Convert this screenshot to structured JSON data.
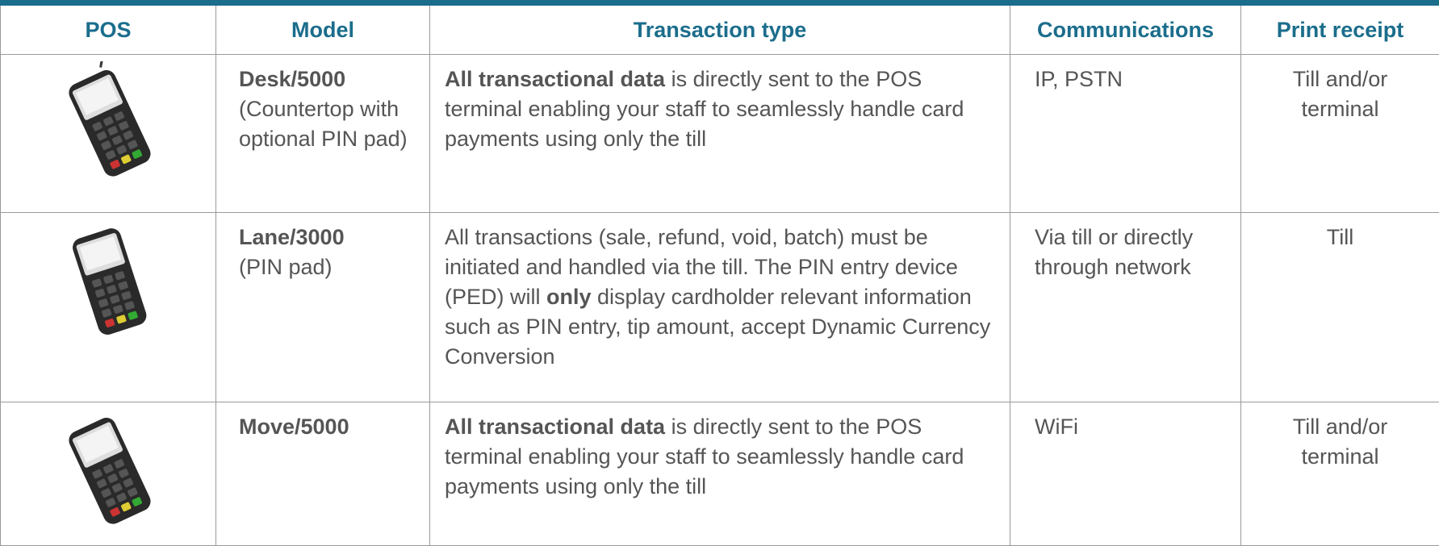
{
  "table": {
    "header": [
      "POS",
      "Model",
      "Transaction type",
      "Communications",
      "Print receipt"
    ],
    "rows": [
      {
        "model": {
          "name": "Desk/5000",
          "description": "(Countertop with optional PIN pad)"
        },
        "transaction": [
          {
            "text": "All transactional data",
            "bold": true
          },
          {
            "text": " is directly sent to the POS terminal enabling your staff to seamlessly handle card payments using only the till",
            "bold": false
          }
        ],
        "communications": "IP, PSTN",
        "print_receipt": "Till and/or terminal"
      },
      {
        "model": {
          "name": "Lane/3000",
          "description": "(PIN pad)"
        },
        "transaction": [
          {
            "text": "All transactions (sale, refund, void, batch) must be initiated and handled via the till. The PIN entry device (PED) will ",
            "bold": false
          },
          {
            "text": "only",
            "bold": true
          },
          {
            "text": " display cardholder relevant information such as PIN entry, tip amount, accept Dynamic Currency Conversion",
            "bold": false
          }
        ],
        "communications": "Via till or directly through network",
        "print_receipt": "Till"
      },
      {
        "model": {
          "name": "Move/5000"
        },
        "transaction": [
          {
            "text": "All transactional data",
            "bold": true
          },
          {
            "text": " is directly sent to the POS terminal enabling your staff to seamlessly handle card payments using only the till",
            "bold": false
          }
        ],
        "communications": "WiFi",
        "print_receipt": "Till and/or terminal"
      }
    ]
  }
}
